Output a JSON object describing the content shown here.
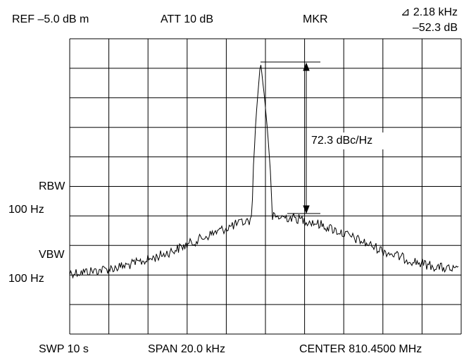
{
  "header": {
    "ref": "REF –5.0 dB m",
    "att": "ATT 10 dB",
    "mkr": "MKR",
    "delta_freq": "⊿  2.18 kHz",
    "delta_level": "–52.3 dB"
  },
  "side_labels": {
    "rbw": "RBW",
    "rbw_value": "100 Hz",
    "vbw": "VBW",
    "vbw_value": "100 Hz"
  },
  "annotation": "72.3 dBc/Hz",
  "footer": {
    "sweep": "SWP 10 s",
    "span": "SPAN 20.0 kHz",
    "center": "CENTER 810.4500 MHz"
  }
}
